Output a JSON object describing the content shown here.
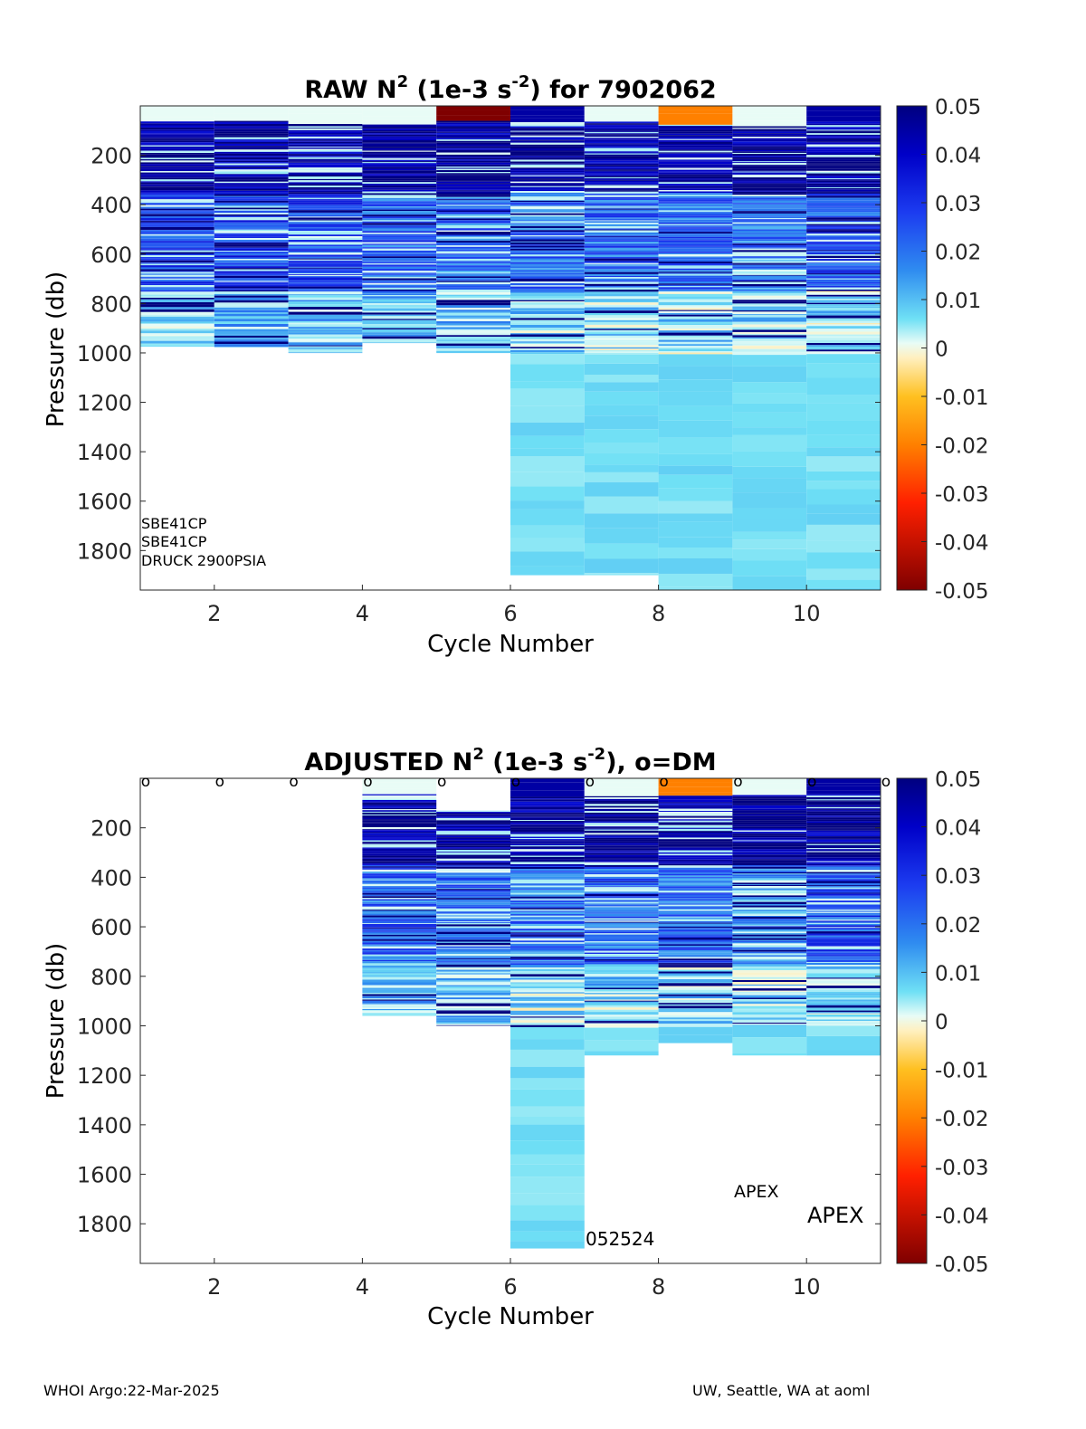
{
  "chart_data": [
    {
      "type": "heatmap",
      "title_prefix": "RAW N",
      "title_sup": "2",
      "title_mid": " (1e-3 s",
      "title_sup2": "-2",
      "title_suffix": ") for 7902062",
      "xlabel": "Cycle Number",
      "ylabel": "Pressure (db)",
      "xticks": [
        "2",
        "4",
        "6",
        "8",
        "10"
      ],
      "yticks": [
        "200",
        "400",
        "600",
        "800",
        "1000",
        "1200",
        "1400",
        "1600",
        "1800"
      ],
      "xlim": [
        1,
        11
      ],
      "ylim": [
        0,
        1960
      ],
      "colorbar_ticks": [
        "0.05",
        "0.04",
        "0.03",
        "0.02",
        "0.01",
        "0",
        "-0.01",
        "-0.02",
        "-0.03",
        "-0.04",
        "-0.05"
      ],
      "clim": [
        -0.05,
        0.05
      ],
      "dm_markers": false,
      "annotations": [
        "SBE41CP",
        "SBE41CP",
        "DRUCK 2900PSIA"
      ],
      "cycles": [
        {
          "cycle": 1,
          "top": 0,
          "bottom": 975,
          "shallow_value": 0.0,
          "upper_value": 0.045,
          "mid_value": 0.025,
          "deep_value": 0.008
        },
        {
          "cycle": 2,
          "top": 0,
          "bottom": 975,
          "shallow_value": 0.0,
          "upper_value": 0.045,
          "mid_value": 0.028,
          "deep_value": 0.01
        },
        {
          "cycle": 3,
          "top": 0,
          "bottom": 1000,
          "shallow_value": 0.0,
          "upper_value": 0.045,
          "mid_value": 0.026,
          "deep_value": 0.012
        },
        {
          "cycle": 4,
          "top": 0,
          "bottom": 960,
          "shallow_value": 0.0,
          "upper_value": 0.045,
          "mid_value": 0.022,
          "deep_value": 0.01
        },
        {
          "cycle": 5,
          "top": 0,
          "bottom": 1000,
          "shallow_value": -0.05,
          "upper_value": 0.045,
          "mid_value": 0.02,
          "deep_value": 0.009
        },
        {
          "cycle": 6,
          "top": 0,
          "bottom": 1900,
          "shallow_value": 0.045,
          "upper_value": 0.045,
          "mid_value": 0.02,
          "deep_value": 0.006
        },
        {
          "cycle": 7,
          "top": 0,
          "bottom": 1900,
          "shallow_value": 0.0,
          "upper_value": 0.045,
          "mid_value": 0.022,
          "deep_value": 0.006
        },
        {
          "cycle": 8,
          "top": 0,
          "bottom": 1960,
          "shallow_value": -0.02,
          "upper_value": 0.045,
          "mid_value": 0.022,
          "deep_value": 0.005
        },
        {
          "cycle": 9,
          "top": 0,
          "bottom": 1960,
          "shallow_value": 0.0,
          "upper_value": 0.045,
          "mid_value": 0.018,
          "deep_value": 0.006
        },
        {
          "cycle": 10,
          "top": 0,
          "bottom": 1960,
          "shallow_value": 0.045,
          "upper_value": 0.045,
          "mid_value": 0.025,
          "deep_value": 0.005
        }
      ]
    },
    {
      "type": "heatmap",
      "title_prefix": "ADJUSTED N",
      "title_sup": "2",
      "title_mid": " (1e-3 s",
      "title_sup2": "-2",
      "title_suffix": "), o=DM",
      "xlabel": "Cycle Number",
      "ylabel": "Pressure (db)",
      "xticks": [
        "2",
        "4",
        "6",
        "8",
        "10"
      ],
      "yticks": [
        "200",
        "400",
        "600",
        "800",
        "1000",
        "1200",
        "1400",
        "1600",
        "1800"
      ],
      "xlim": [
        1,
        11
      ],
      "ylim": [
        0,
        1960
      ],
      "colorbar_ticks": [
        "0.05",
        "0.04",
        "0.03",
        "0.02",
        "0.01",
        "0",
        "-0.01",
        "-0.02",
        "-0.03",
        "-0.04",
        "-0.05"
      ],
      "clim": [
        -0.05,
        0.05
      ],
      "dm_markers": true,
      "dm_marker_cycles": [
        1,
        2,
        3,
        4,
        5,
        6,
        7,
        8,
        9,
        10,
        11
      ],
      "dm_marker_symbol": "o",
      "annotations": [
        "052524",
        "APEX",
        "APEX"
      ],
      "cycles": [
        {
          "cycle": 4,
          "top": 0,
          "bottom": 960,
          "shallow_value": 0.0,
          "upper_value": 0.045,
          "mid_value": 0.022,
          "deep_value": 0.01
        },
        {
          "cycle": 5,
          "top": 130,
          "bottom": 1000,
          "shallow_value": 0.045,
          "upper_value": 0.045,
          "mid_value": 0.02,
          "deep_value": 0.009
        },
        {
          "cycle": 6,
          "top": 0,
          "bottom": 1900,
          "shallow_value": 0.045,
          "upper_value": 0.045,
          "mid_value": 0.02,
          "deep_value": 0.006
        },
        {
          "cycle": 7,
          "top": 0,
          "bottom": 1120,
          "shallow_value": 0.0,
          "upper_value": 0.045,
          "mid_value": 0.022,
          "deep_value": 0.007
        },
        {
          "cycle": 8,
          "top": 0,
          "bottom": 1070,
          "shallow_value": -0.02,
          "upper_value": 0.045,
          "mid_value": 0.022,
          "deep_value": 0.007
        },
        {
          "cycle": 9,
          "top": 0,
          "bottom": 1120,
          "shallow_value": 0.0,
          "upper_value": 0.045,
          "mid_value": 0.018,
          "deep_value": 0.007
        },
        {
          "cycle": 10,
          "top": 0,
          "bottom": 1120,
          "shallow_value": 0.045,
          "upper_value": 0.045,
          "mid_value": 0.025,
          "deep_value": 0.006
        }
      ]
    }
  ],
  "footer": {
    "left": "WHOI Argo:22-Mar-2025",
    "right": "UW, Seattle, WA at aoml"
  }
}
